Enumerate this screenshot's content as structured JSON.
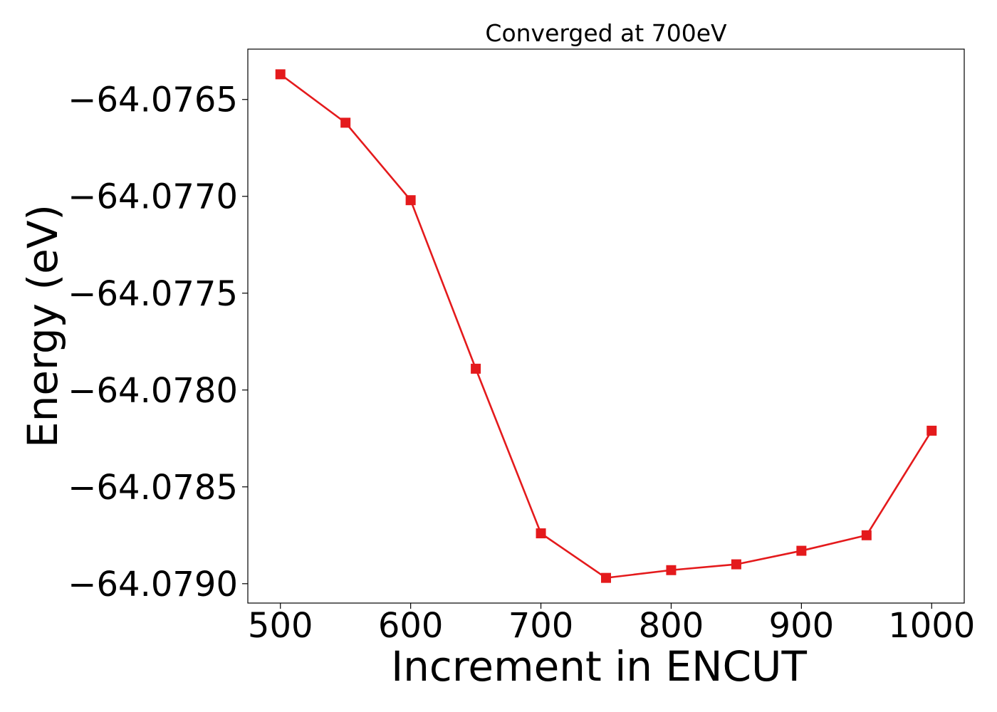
{
  "chart_data": {
    "type": "line",
    "title": "Converged at 700eV",
    "xlabel": "Increment in ENCUT",
    "ylabel": "Energy (eV)",
    "x": [
      500,
      550,
      600,
      650,
      700,
      750,
      800,
      850,
      900,
      950,
      1000
    ],
    "series": [
      {
        "values": [
          -64.07637,
          -64.07662,
          -64.07702,
          -64.07789,
          -64.07874,
          -64.07897,
          -64.07893,
          -64.0789,
          -64.07883,
          -64.07875,
          -64.07821
        ],
        "color": "#e41a1c",
        "marker": "square"
      }
    ],
    "xlim": [
      475,
      1025
    ],
    "ylim": [
      -64.0791,
      -64.07624
    ],
    "xticks": [
      500,
      600,
      700,
      800,
      900,
      1000
    ],
    "xtick_labels": [
      "500",
      "600",
      "700",
      "800",
      "900",
      "1000"
    ],
    "yticks": [
      -64.0765,
      -64.077,
      -64.0775,
      -64.078,
      -64.0785,
      -64.079
    ],
    "ytick_labels": [
      "−64.0765",
      "−64.0770",
      "−64.0775",
      "−64.0780",
      "−64.0785",
      "−64.0790"
    ],
    "grid": false,
    "legend": "none"
  }
}
